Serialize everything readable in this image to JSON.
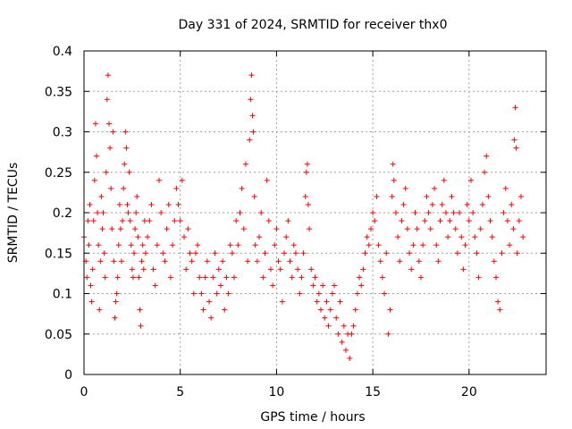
{
  "chart_data": {
    "type": "scatter",
    "title": "Day 331 of 2024, SRMTID for receiver thx0",
    "xlabel": "GPS time / hours",
    "ylabel": "SRMTID / TECUs",
    "xlim": [
      0,
      24
    ],
    "ylim": [
      0,
      0.4
    ],
    "x_ticks": [
      0,
      5,
      10,
      15,
      20
    ],
    "y_ticks": [
      0,
      0.05,
      0.1,
      0.15,
      0.2,
      0.25,
      0.3,
      0.35,
      0.4
    ],
    "x_tick_labels": [
      "0",
      "5",
      "10",
      "15",
      "20"
    ],
    "y_tick_labels": [
      "0",
      "0.05",
      "0.1",
      "0.15",
      "0.2",
      "0.25",
      "0.3",
      "0.35",
      "0.4"
    ],
    "grid": true,
    "marker": "+",
    "color": "#ff0000",
    "series": [
      {
        "points": [
          [
            0.0,
            0.17
          ],
          [
            0.1,
            0.14
          ],
          [
            0.15,
            0.12
          ],
          [
            0.2,
            0.19
          ],
          [
            0.25,
            0.16
          ],
          [
            0.3,
            0.21
          ],
          [
            0.35,
            0.11
          ],
          [
            0.4,
            0.09
          ],
          [
            0.45,
            0.13
          ],
          [
            0.5,
            0.19
          ],
          [
            0.55,
            0.24
          ],
          [
            0.6,
            0.31
          ],
          [
            0.65,
            0.27
          ],
          [
            0.7,
            0.2
          ],
          [
            0.75,
            0.16
          ],
          [
            0.8,
            0.08
          ],
          [
            0.85,
            0.14
          ],
          [
            0.9,
            0.22
          ],
          [
            0.95,
            0.18
          ],
          [
            1.0,
            0.2
          ],
          [
            1.05,
            0.15
          ],
          [
            1.1,
            0.12
          ],
          [
            1.15,
            0.25
          ],
          [
            1.2,
            0.34
          ],
          [
            1.25,
            0.37
          ],
          [
            1.3,
            0.31
          ],
          [
            1.35,
            0.28
          ],
          [
            1.4,
            0.23
          ],
          [
            1.45,
            0.18
          ],
          [
            1.5,
            0.3
          ],
          [
            1.55,
            0.14
          ],
          [
            1.6,
            0.07
          ],
          [
            1.65,
            0.09
          ],
          [
            1.7,
            0.1
          ],
          [
            1.75,
            0.12
          ],
          [
            1.8,
            0.16
          ],
          [
            1.85,
            0.21
          ],
          [
            1.9,
            0.18
          ],
          [
            1.95,
            0.14
          ],
          [
            2.0,
            0.19
          ],
          [
            2.05,
            0.23
          ],
          [
            2.1,
            0.26
          ],
          [
            2.15,
            0.3
          ],
          [
            2.2,
            0.28
          ],
          [
            2.25,
            0.21
          ],
          [
            2.3,
            0.2
          ],
          [
            2.35,
            0.25
          ],
          [
            2.4,
            0.19
          ],
          [
            2.45,
            0.16
          ],
          [
            2.5,
            0.13
          ],
          [
            2.55,
            0.12
          ],
          [
            2.6,
            0.15
          ],
          [
            2.65,
            0.18
          ],
          [
            2.7,
            0.2
          ],
          [
            2.75,
            0.22
          ],
          [
            2.8,
            0.17
          ],
          [
            2.85,
            0.12
          ],
          [
            2.9,
            0.08
          ],
          [
            2.95,
            0.06
          ],
          [
            3.0,
            0.14
          ],
          [
            3.05,
            0.16
          ],
          [
            3.1,
            0.13
          ],
          [
            3.15,
            0.19
          ],
          [
            3.2,
            0.15
          ],
          [
            3.3,
            0.17
          ],
          [
            3.4,
            0.19
          ],
          [
            3.5,
            0.21
          ],
          [
            3.6,
            0.13
          ],
          [
            3.7,
            0.11
          ],
          [
            3.8,
            0.16
          ],
          [
            3.9,
            0.24
          ],
          [
            4.0,
            0.2
          ],
          [
            4.1,
            0.15
          ],
          [
            4.2,
            0.14
          ],
          [
            4.3,
            0.18
          ],
          [
            4.4,
            0.21
          ],
          [
            4.5,
            0.12
          ],
          [
            4.6,
            0.16
          ],
          [
            4.7,
            0.19
          ],
          [
            4.8,
            0.23
          ],
          [
            4.9,
            0.21
          ],
          [
            5.0,
            0.19
          ],
          [
            5.1,
            0.24
          ],
          [
            5.2,
            0.17
          ],
          [
            5.3,
            0.13
          ],
          [
            5.4,
            0.18
          ],
          [
            5.5,
            0.15
          ],
          [
            5.6,
            0.14
          ],
          [
            5.7,
            0.1
          ],
          [
            5.8,
            0.15
          ],
          [
            5.9,
            0.16
          ],
          [
            6.0,
            0.12
          ],
          [
            6.1,
            0.1
          ],
          [
            6.2,
            0.08
          ],
          [
            6.3,
            0.12
          ],
          [
            6.4,
            0.14
          ],
          [
            6.5,
            0.09
          ],
          [
            6.6,
            0.07
          ],
          [
            6.7,
            0.12
          ],
          [
            6.8,
            0.15
          ],
          [
            6.9,
            0.1
          ],
          [
            7.0,
            0.13
          ],
          [
            7.1,
            0.11
          ],
          [
            7.2,
            0.14
          ],
          [
            7.3,
            0.08
          ],
          [
            7.4,
            0.12
          ],
          [
            7.5,
            0.1
          ],
          [
            7.6,
            0.16
          ],
          [
            7.7,
            0.15
          ],
          [
            7.8,
            0.12
          ],
          [
            7.9,
            0.19
          ],
          [
            8.0,
            0.16
          ],
          [
            8.1,
            0.2
          ],
          [
            8.2,
            0.23
          ],
          [
            8.3,
            0.18
          ],
          [
            8.4,
            0.26
          ],
          [
            8.5,
            0.14
          ],
          [
            8.6,
            0.29
          ],
          [
            8.65,
            0.34
          ],
          [
            8.7,
            0.37
          ],
          [
            8.75,
            0.32
          ],
          [
            8.8,
            0.3
          ],
          [
            8.85,
            0.22
          ],
          [
            8.9,
            0.16
          ],
          [
            9.0,
            0.14
          ],
          [
            9.1,
            0.17
          ],
          [
            9.2,
            0.2
          ],
          [
            9.3,
            0.12
          ],
          [
            9.4,
            0.15
          ],
          [
            9.5,
            0.24
          ],
          [
            9.6,
            0.19
          ],
          [
            9.7,
            0.13
          ],
          [
            9.8,
            0.11
          ],
          [
            9.9,
            0.16
          ],
          [
            10.0,
            0.18
          ],
          [
            10.1,
            0.14
          ],
          [
            10.2,
            0.13
          ],
          [
            10.3,
            0.09
          ],
          [
            10.4,
            0.15
          ],
          [
            10.5,
            0.17
          ],
          [
            10.6,
            0.19
          ],
          [
            10.7,
            0.14
          ],
          [
            10.8,
            0.12
          ],
          [
            10.9,
            0.16
          ],
          [
            11.0,
            0.15
          ],
          [
            11.1,
            0.13
          ],
          [
            11.2,
            0.1
          ],
          [
            11.3,
            0.12
          ],
          [
            11.4,
            0.15
          ],
          [
            11.5,
            0.22
          ],
          [
            11.55,
            0.25
          ],
          [
            11.6,
            0.26
          ],
          [
            11.65,
            0.21
          ],
          [
            11.7,
            0.18
          ],
          [
            11.8,
            0.13
          ],
          [
            11.9,
            0.11
          ],
          [
            12.0,
            0.12
          ],
          [
            12.1,
            0.09
          ],
          [
            12.2,
            0.1
          ],
          [
            12.3,
            0.08
          ],
          [
            12.4,
            0.11
          ],
          [
            12.5,
            0.07
          ],
          [
            12.6,
            0.09
          ],
          [
            12.7,
            0.06
          ],
          [
            12.8,
            0.08
          ],
          [
            12.9,
            0.1
          ],
          [
            13.0,
            0.11
          ],
          [
            13.1,
            0.07
          ],
          [
            13.2,
            0.05
          ],
          [
            13.3,
            0.09
          ],
          [
            13.4,
            0.04
          ],
          [
            13.5,
            0.06
          ],
          [
            13.6,
            0.03
          ],
          [
            13.7,
            0.05
          ],
          [
            13.8,
            0.02
          ],
          [
            13.9,
            0.05
          ],
          [
            14.0,
            0.06
          ],
          [
            14.1,
            0.08
          ],
          [
            14.2,
            0.1
          ],
          [
            14.3,
            0.12
          ],
          [
            14.4,
            0.11
          ],
          [
            14.5,
            0.13
          ],
          [
            14.6,
            0.15
          ],
          [
            14.7,
            0.17
          ],
          [
            14.8,
            0.16
          ],
          [
            14.9,
            0.18
          ],
          [
            15.0,
            0.2
          ],
          [
            15.1,
            0.19
          ],
          [
            15.2,
            0.22
          ],
          [
            15.3,
            0.16
          ],
          [
            15.4,
            0.14
          ],
          [
            15.5,
            0.12
          ],
          [
            15.6,
            0.1
          ],
          [
            15.7,
            0.15
          ],
          [
            15.8,
            0.05
          ],
          [
            15.9,
            0.08
          ],
          [
            16.0,
            0.22
          ],
          [
            16.05,
            0.26
          ],
          [
            16.1,
            0.24
          ],
          [
            16.2,
            0.2
          ],
          [
            16.3,
            0.17
          ],
          [
            16.4,
            0.14
          ],
          [
            16.5,
            0.19
          ],
          [
            16.6,
            0.21
          ],
          [
            16.7,
            0.23
          ],
          [
            16.8,
            0.18
          ],
          [
            16.9,
            0.15
          ],
          [
            17.0,
            0.13
          ],
          [
            17.1,
            0.16
          ],
          [
            17.2,
            0.2
          ],
          [
            17.3,
            0.18
          ],
          [
            17.4,
            0.14
          ],
          [
            17.5,
            0.12
          ],
          [
            17.6,
            0.16
          ],
          [
            17.7,
            0.19
          ],
          [
            17.8,
            0.22
          ],
          [
            17.9,
            0.2
          ],
          [
            18.0,
            0.18
          ],
          [
            18.1,
            0.21
          ],
          [
            18.2,
            0.23
          ],
          [
            18.3,
            0.16
          ],
          [
            18.4,
            0.14
          ],
          [
            18.5,
            0.19
          ],
          [
            18.6,
            0.21
          ],
          [
            18.7,
            0.24
          ],
          [
            18.8,
            0.2
          ],
          [
            18.9,
            0.17
          ],
          [
            19.0,
            0.19
          ],
          [
            19.1,
            0.22
          ],
          [
            19.2,
            0.2
          ],
          [
            19.3,
            0.18
          ],
          [
            19.4,
            0.15
          ],
          [
            19.5,
            0.2
          ],
          [
            19.6,
            0.17
          ],
          [
            19.7,
            0.13
          ],
          [
            19.8,
            0.16
          ],
          [
            19.9,
            0.21
          ],
          [
            20.0,
            0.19
          ],
          [
            20.1,
            0.24
          ],
          [
            20.2,
            0.2
          ],
          [
            20.3,
            0.17
          ],
          [
            20.4,
            0.15
          ],
          [
            20.5,
            0.12
          ],
          [
            20.6,
            0.18
          ],
          [
            20.7,
            0.21
          ],
          [
            20.8,
            0.25
          ],
          [
            20.9,
            0.27
          ],
          [
            21.0,
            0.22
          ],
          [
            21.1,
            0.19
          ],
          [
            21.2,
            0.17
          ],
          [
            21.3,
            0.14
          ],
          [
            21.4,
            0.12
          ],
          [
            21.5,
            0.09
          ],
          [
            21.6,
            0.08
          ],
          [
            21.7,
            0.15
          ],
          [
            21.8,
            0.2
          ],
          [
            21.9,
            0.23
          ],
          [
            22.0,
            0.19
          ],
          [
            22.1,
            0.16
          ],
          [
            22.2,
            0.21
          ],
          [
            22.3,
            0.18
          ],
          [
            22.35,
            0.29
          ],
          [
            22.4,
            0.33
          ],
          [
            22.45,
            0.28
          ],
          [
            22.5,
            0.15
          ],
          [
            22.6,
            0.19
          ],
          [
            22.7,
            0.22
          ],
          [
            22.8,
            0.17
          ]
        ]
      }
    ]
  }
}
